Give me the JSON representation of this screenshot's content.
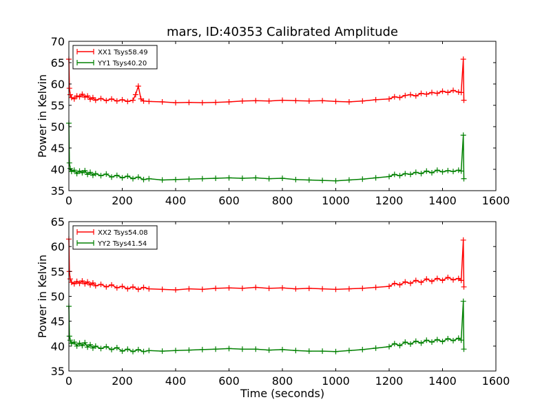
{
  "figure": {
    "title": "mars, ID:40353 Calibrated Amplitude"
  },
  "chart_data": [
    {
      "type": "line",
      "title": "mars, ID:40353 Calibrated Amplitude",
      "xlabel": "",
      "ylabel": "Power in Kelvin",
      "xlim": [
        0,
        1600
      ],
      "ylim": [
        35,
        70
      ],
      "xticks": [
        "0",
        "200",
        "400",
        "600",
        "800",
        "1000",
        "1200",
        "1400",
        "1600"
      ],
      "yticks": [
        "35",
        "40",
        "45",
        "50",
        "55",
        "60",
        "65",
        "70"
      ],
      "grid": false,
      "legend": "top-left",
      "series": [
        {
          "name": "XX1 Tsys58.49",
          "color": "#ff0000",
          "marker": "plus",
          "x": [
            0,
            2,
            5,
            10,
            20,
            30,
            40,
            50,
            60,
            70,
            80,
            90,
            100,
            120,
            140,
            160,
            180,
            200,
            220,
            240,
            250,
            260,
            270,
            280,
            300,
            350,
            400,
            450,
            500,
            550,
            600,
            650,
            700,
            750,
            800,
            850,
            900,
            950,
            1000,
            1050,
            1100,
            1150,
            1200,
            1220,
            1240,
            1260,
            1280,
            1300,
            1320,
            1340,
            1360,
            1380,
            1400,
            1420,
            1440,
            1460,
            1470,
            1478,
            1480
          ],
          "values": [
            65.8,
            59.0,
            57.5,
            56.8,
            56.5,
            57.2,
            57.0,
            57.6,
            56.9,
            57.2,
            56.4,
            56.8,
            56.2,
            56.6,
            56.1,
            56.5,
            56.0,
            56.3,
            55.9,
            56.2,
            57.5,
            59.5,
            56.5,
            56.0,
            55.9,
            55.8,
            55.6,
            55.7,
            55.6,
            55.7,
            55.8,
            56.0,
            56.1,
            56.0,
            56.2,
            56.1,
            56.0,
            56.1,
            55.9,
            55.8,
            56.0,
            56.3,
            56.5,
            57.0,
            56.8,
            57.3,
            57.5,
            57.2,
            57.8,
            57.6,
            58.0,
            57.8,
            58.3,
            58.0,
            58.5,
            58.1,
            58.0,
            65.8,
            56.2
          ]
        },
        {
          "name": "YY1 Tsys40.20",
          "color": "#008000",
          "marker": "plus",
          "x": [
            0,
            2,
            5,
            10,
            20,
            30,
            40,
            50,
            60,
            70,
            80,
            90,
            100,
            120,
            140,
            160,
            180,
            200,
            220,
            240,
            260,
            280,
            300,
            350,
            400,
            450,
            500,
            550,
            600,
            650,
            700,
            750,
            800,
            850,
            900,
            950,
            1000,
            1050,
            1100,
            1150,
            1200,
            1220,
            1240,
            1260,
            1280,
            1300,
            1320,
            1340,
            1360,
            1380,
            1400,
            1420,
            1440,
            1460,
            1470,
            1478,
            1480
          ],
          "values": [
            50.8,
            41.5,
            40.2,
            39.5,
            39.8,
            39.0,
            39.6,
            39.2,
            39.7,
            38.8,
            39.3,
            38.6,
            39.0,
            38.5,
            38.9,
            38.2,
            38.6,
            38.0,
            38.4,
            37.8,
            38.2,
            37.6,
            37.8,
            37.5,
            37.6,
            37.7,
            37.8,
            37.9,
            38.0,
            37.9,
            38.0,
            37.8,
            37.9,
            37.6,
            37.5,
            37.4,
            37.3,
            37.5,
            37.7,
            38.0,
            38.3,
            38.8,
            38.5,
            39.0,
            38.8,
            39.3,
            39.0,
            39.6,
            39.2,
            39.8,
            39.4,
            39.7,
            39.5,
            39.8,
            39.6,
            48.0,
            37.8
          ]
        }
      ]
    },
    {
      "type": "line",
      "title": "",
      "xlabel": "Time (seconds)",
      "ylabel": "Power in Kelvin",
      "xlim": [
        0,
        1600
      ],
      "ylim": [
        35,
        65
      ],
      "xticks": [
        "0",
        "200",
        "400",
        "600",
        "800",
        "1000",
        "1200",
        "1400",
        "1600"
      ],
      "yticks": [
        "35",
        "40",
        "45",
        "50",
        "55",
        "60",
        "65"
      ],
      "grid": false,
      "legend": "top-left",
      "series": [
        {
          "name": "XX2 Tsys54.08",
          "color": "#ff0000",
          "marker": "plus",
          "x": [
            0,
            2,
            5,
            10,
            20,
            30,
            40,
            50,
            60,
            70,
            80,
            90,
            100,
            120,
            140,
            160,
            180,
            200,
            220,
            240,
            260,
            280,
            300,
            350,
            400,
            450,
            500,
            550,
            600,
            650,
            700,
            750,
            800,
            850,
            900,
            950,
            1000,
            1050,
            1100,
            1150,
            1200,
            1220,
            1240,
            1260,
            1280,
            1300,
            1320,
            1340,
            1360,
            1380,
            1400,
            1420,
            1440,
            1460,
            1470,
            1478,
            1480
          ],
          "values": [
            61.5,
            55.0,
            53.5,
            52.8,
            52.5,
            53.0,
            52.6,
            53.1,
            52.5,
            52.9,
            52.3,
            52.7,
            52.1,
            52.4,
            51.9,
            52.3,
            51.7,
            52.0,
            51.5,
            51.9,
            51.4,
            51.8,
            51.5,
            51.4,
            51.3,
            51.5,
            51.4,
            51.6,
            51.7,
            51.6,
            51.8,
            51.6,
            51.7,
            51.5,
            51.6,
            51.5,
            51.4,
            51.5,
            51.6,
            51.8,
            52.0,
            52.6,
            52.3,
            52.9,
            52.6,
            53.2,
            52.8,
            53.5,
            53.0,
            53.6,
            53.2,
            53.8,
            53.3,
            53.6,
            53.2,
            61.3,
            51.9
          ]
        },
        {
          "name": "YY2 Tsys41.54",
          "color": "#008000",
          "marker": "plus",
          "x": [
            0,
            2,
            5,
            10,
            20,
            30,
            40,
            50,
            60,
            70,
            80,
            90,
            100,
            120,
            140,
            160,
            180,
            200,
            220,
            240,
            260,
            280,
            300,
            350,
            400,
            450,
            500,
            550,
            600,
            650,
            700,
            750,
            800,
            850,
            900,
            950,
            1000,
            1050,
            1100,
            1150,
            1200,
            1220,
            1240,
            1260,
            1280,
            1300,
            1320,
            1340,
            1360,
            1380,
            1400,
            1420,
            1440,
            1460,
            1470,
            1478,
            1480
          ],
          "values": [
            48.0,
            42.0,
            41.2,
            40.5,
            40.8,
            40.0,
            40.6,
            40.1,
            40.7,
            39.8,
            40.3,
            39.6,
            40.0,
            39.5,
            39.9,
            39.3,
            39.7,
            39.0,
            39.4,
            38.9,
            39.3,
            38.9,
            39.1,
            39.0,
            39.1,
            39.2,
            39.3,
            39.4,
            39.5,
            39.4,
            39.4,
            39.2,
            39.3,
            39.1,
            39.0,
            39.0,
            38.9,
            39.1,
            39.3,
            39.6,
            39.9,
            40.5,
            40.1,
            40.8,
            40.4,
            41.0,
            40.6,
            41.2,
            40.8,
            41.3,
            40.9,
            41.5,
            41.1,
            41.6,
            41.2,
            49.0,
            39.4
          ]
        }
      ]
    }
  ]
}
